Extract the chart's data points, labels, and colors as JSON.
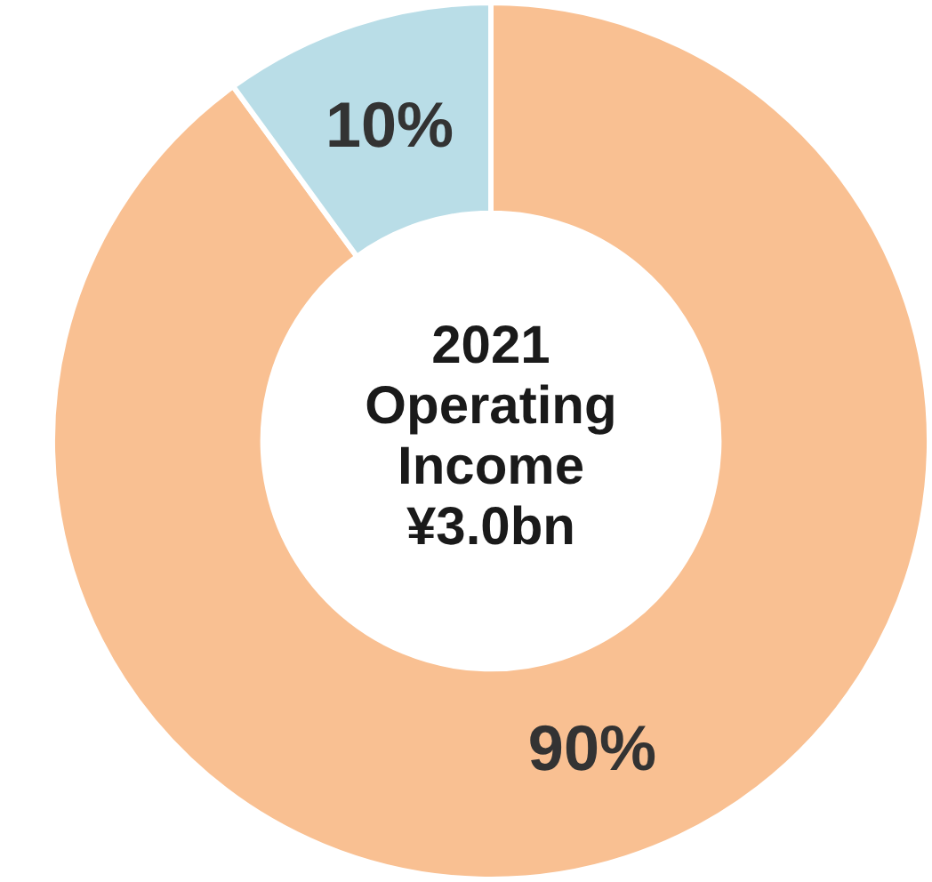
{
  "chart_data": {
    "type": "donut",
    "title": "2021 Operating Income ¥3.0bn",
    "categories": [
      null,
      null
    ],
    "values": [
      90,
      10
    ],
    "colors": [
      "#f9c092",
      "#b9dde7"
    ],
    "value_labels": [
      "90%",
      "10%"
    ],
    "legend": false
  }
}
